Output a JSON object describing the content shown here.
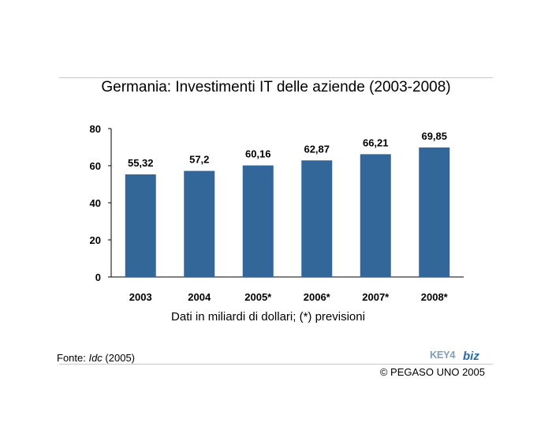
{
  "chart_data": {
    "type": "bar",
    "title": "Germania: Investimenti IT delle aziende (2003-2008)",
    "categories": [
      "2003",
      "2004",
      "2005*",
      "2006*",
      "2007*",
      "2008*"
    ],
    "values": [
      55.32,
      57.2,
      60.16,
      62.87,
      66.21,
      69.85
    ],
    "data_labels": [
      "55,32",
      "57,2",
      "60,16",
      "62,87",
      "66,21",
      "69,85"
    ],
    "yticks": [
      "0",
      "20",
      "40",
      "60",
      "80"
    ],
    "ylim": [
      0,
      80
    ],
    "note": "Dati in miliardi di dollari; (*) previsioni",
    "bar_color": "#336699",
    "grid": false
  },
  "footer": {
    "source_prefix": "Fonte: ",
    "source_name": "Idc",
    "source_suffix": " (2005)",
    "copyright": "© PEGASO UNO 2005",
    "logo_key": "KEY4",
    "logo_biz": "biz"
  }
}
